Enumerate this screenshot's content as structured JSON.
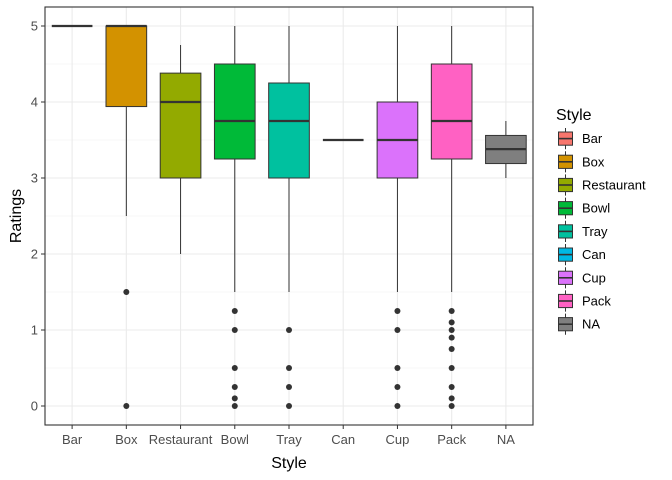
{
  "chart_data": {
    "type": "boxplot",
    "title": "",
    "xlabel": "Style",
    "ylabel": "Ratings",
    "ylim": [
      -0.25,
      5.25
    ],
    "yticks": [
      0,
      1,
      2,
      3,
      4,
      5
    ],
    "grid": true,
    "legend": {
      "title": "Style",
      "placement": "right",
      "entries": [
        "Bar",
        "Box",
        "Restaurant",
        "Bowl",
        "Tray",
        "Can",
        "Cup",
        "Pack",
        "NA"
      ]
    },
    "categories": [
      "Bar",
      "Box",
      "Restaurant",
      "Bowl",
      "Tray",
      "Can",
      "Cup",
      "Pack",
      "NA"
    ],
    "series": [
      {
        "category": "Bar",
        "color": "#F8766D",
        "whisker_low": 5,
        "q1": 5,
        "median": 5,
        "q3": 5,
        "whisker_high": 5,
        "outliers": []
      },
      {
        "category": "Box",
        "color": "#D39200",
        "whisker_low": 2.5,
        "q1": 3.94,
        "median": 5,
        "q3": 5,
        "whisker_high": 5,
        "outliers": [
          1.5,
          0
        ]
      },
      {
        "category": "Restaurant",
        "color": "#93AA00",
        "whisker_low": 2,
        "q1": 3,
        "median": 4,
        "q3": 4.38,
        "whisker_high": 4.75,
        "outliers": []
      },
      {
        "category": "Bowl",
        "color": "#00BA38",
        "whisker_low": 1.5,
        "q1": 3.25,
        "median": 3.75,
        "q3": 4.5,
        "whisker_high": 5,
        "outliers": [
          1.25,
          1,
          0.5,
          0.25,
          0.1,
          0
        ]
      },
      {
        "category": "Tray",
        "color": "#00C19F",
        "whisker_low": 1.5,
        "q1": 3,
        "median": 3.75,
        "q3": 4.25,
        "whisker_high": 5,
        "outliers": [
          1,
          0.5,
          0.25,
          0
        ]
      },
      {
        "category": "Can",
        "color": "#00B9E3",
        "whisker_low": 3.5,
        "q1": 3.5,
        "median": 3.5,
        "q3": 3.5,
        "whisker_high": 3.5,
        "outliers": []
      },
      {
        "category": "Cup",
        "color": "#DB72FB",
        "whisker_low": 1.5,
        "q1": 3,
        "median": 3.5,
        "q3": 4,
        "whisker_high": 5,
        "outliers": [
          1.25,
          1,
          0.5,
          0.25,
          0
        ]
      },
      {
        "category": "Pack",
        "color": "#FF61C3",
        "whisker_low": 1.5,
        "q1": 3.25,
        "median": 3.75,
        "q3": 4.5,
        "whisker_high": 5,
        "outliers": [
          1.25,
          1.1,
          1,
          0.9,
          0.75,
          0.5,
          0.25,
          0.1,
          0
        ]
      },
      {
        "category": "NA",
        "color": "#7F7F7F",
        "whisker_low": 3,
        "q1": 3.19,
        "median": 3.38,
        "q3": 3.56,
        "whisker_high": 3.75,
        "outliers": []
      }
    ]
  }
}
